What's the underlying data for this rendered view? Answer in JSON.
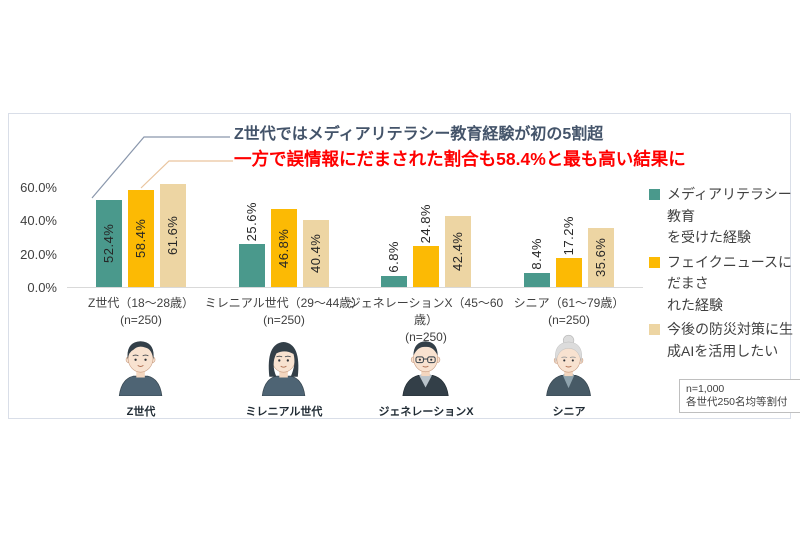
{
  "colors": {
    "series_teal": "#4a998c",
    "series_yellow": "#fcba04",
    "series_tan": "#edd5a3",
    "headline_navy": "#44546a",
    "headline_red": "#ff0000",
    "callout_gray": "#8a97ac",
    "callout_orange": "#e9c49e",
    "axis_line": "#d9d9d9",
    "card_border": "#d9dee8"
  },
  "chart_data": {
    "type": "bar",
    "title": "Z世代ではメディアリテラシー教育経験が初の5割超",
    "subtitle": "一方で誤情報にだまされた割合も58.4%と最も高い結果に",
    "categories": [
      "Z世代（18～28歳）",
      "ミレニアル世代（29～44歳）",
      "ジェネレーションX（45～60歳）",
      "シニア（61～79歳）"
    ],
    "category_sublabels": [
      "(n=250)",
      "(n=250)",
      "(n=250)",
      "(n=250)"
    ],
    "series": [
      {
        "name": "メディアリテラシー教育を受けた経験",
        "color": "#4a998c",
        "values": [
          52.4,
          25.6,
          6.8,
          8.4
        ]
      },
      {
        "name": "フェイクニュースにだまされた経験",
        "color": "#fcba04",
        "values": [
          58.4,
          46.8,
          24.8,
          17.2
        ]
      },
      {
        "name": "今後の防災対策に生成AIを活用したい",
        "color": "#edd5a3",
        "values": [
          61.6,
          40.4,
          42.4,
          35.6
        ]
      }
    ],
    "yticks": [
      {
        "value": 0,
        "label": "0.0%"
      },
      {
        "value": 20,
        "label": "20.0%"
      },
      {
        "value": 40,
        "label": "40.0%"
      },
      {
        "value": 60,
        "label": "60.0%"
      }
    ],
    "ylim": [
      0,
      70
    ],
    "value_suffix": "%",
    "grid": false,
    "legend_position": "right"
  },
  "legend": {
    "items": [
      {
        "line1": "メディアリテラシー教育",
        "line2": "を受けた経験",
        "color": "#4a998c"
      },
      {
        "line1": "フェイクニュースにだまさ",
        "line2": "れた経験",
        "color": "#fcba04"
      },
      {
        "line1": "今後の防災対策に生",
        "line2": "成AIを活用したい",
        "color": "#edd5a3"
      }
    ]
  },
  "avatars": [
    {
      "label": "Z世代"
    },
    {
      "label": "ミレニアル世代"
    },
    {
      "label": "ジェネレーションX"
    },
    {
      "label": "シニア"
    }
  ],
  "note": {
    "line1": "n=1,000",
    "line2": "各世代250名均等割付"
  }
}
